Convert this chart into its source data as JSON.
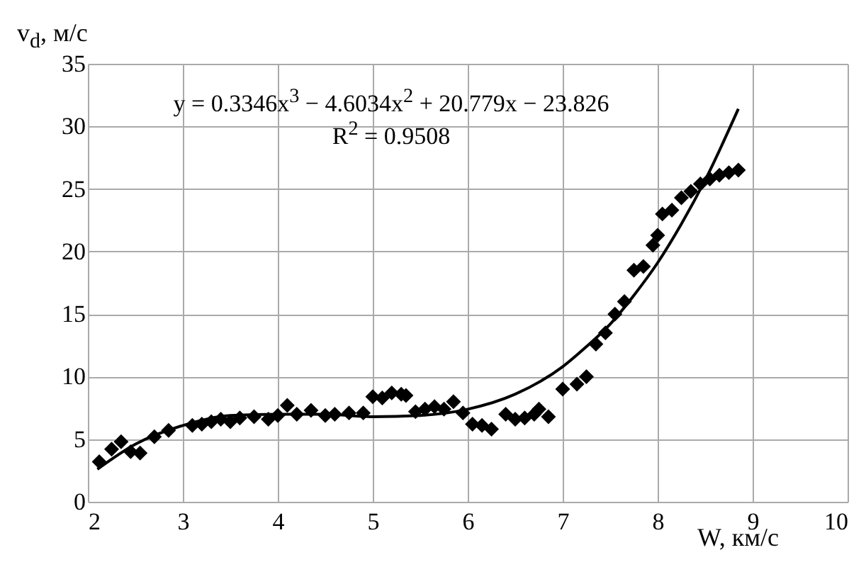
{
  "chart_data": {
    "type": "scatter",
    "xlabel": "W, км/с",
    "ylabel": "v$_{d}$, м/с",
    "annotations": [
      "y = 0.3346x$^{3}$ − 4.6034x$^{2}$ + 20.779x − 23.826",
      "R$^{2}$ = 0.9508"
    ],
    "xlim": [
      2,
      10
    ],
    "xticks": [
      2,
      3,
      4,
      5,
      6,
      7,
      8,
      9,
      10
    ],
    "ylim": [
      0,
      35
    ],
    "yticks": [
      0,
      5,
      10,
      15,
      20,
      25,
      30,
      35
    ],
    "grid": true,
    "marker": "diamond",
    "series": [
      {
        "type": "line",
        "marker": "none",
        "color": "#000000",
        "x": [
          2.1,
          2.5,
          3,
          3.5,
          4,
          4.5,
          5,
          5.5,
          6,
          6.5,
          7,
          7.25,
          7.5,
          7.75,
          8,
          8.25,
          8.5,
          8.85
        ],
        "values": [
          2.6,
          4.6,
          6.1,
          6.9,
          7.0,
          7.0,
          6.8,
          6.9,
          7.4,
          8.6,
          10.8,
          12.4,
          14.2,
          16.5,
          19.1,
          22.2,
          25.7,
          31.4
        ]
      },
      {
        "color": "#000000",
        "x": [
          2.12,
          2.25,
          2.35,
          2.45,
          2.55,
          2.7,
          2.85,
          3.1,
          3.2,
          3.3,
          3.4,
          3.5,
          3.6,
          3.75,
          3.9,
          4.0,
          4.1,
          4.2,
          4.35,
          4.5,
          4.6,
          4.75,
          4.9,
          5.0,
          5.1,
          5.2,
          5.3,
          5.35,
          5.45,
          5.55,
          5.65,
          5.75,
          5.85,
          5.95,
          6.05,
          6.15,
          6.25,
          6.4,
          6.5,
          6.6,
          6.7,
          6.75,
          6.85,
          7.0,
          7.15,
          7.25,
          7.35,
          7.45,
          7.55,
          7.65,
          7.75,
          7.85,
          7.95,
          8.0,
          8.05,
          8.15,
          8.25,
          8.35,
          8.45,
          8.55,
          8.65,
          8.75,
          8.85
        ],
        "values": [
          3.2,
          4.2,
          4.8,
          4.0,
          3.9,
          5.2,
          5.7,
          6.1,
          6.2,
          6.4,
          6.6,
          6.4,
          6.7,
          6.8,
          6.6,
          6.9,
          7.7,
          7.0,
          7.3,
          6.9,
          7.0,
          7.1,
          7.1,
          8.4,
          8.3,
          8.7,
          8.6,
          8.5,
          7.2,
          7.4,
          7.6,
          7.4,
          8.0,
          7.1,
          6.2,
          6.1,
          5.8,
          7.0,
          6.6,
          6.7,
          7.0,
          7.4,
          6.8,
          9.0,
          9.4,
          10.0,
          12.6,
          13.5,
          15.0,
          16.0,
          18.5,
          18.8,
          20.5,
          21.3,
          23.0,
          23.3,
          24.3,
          24.8,
          25.4,
          25.8,
          26.1,
          26.3,
          26.5
        ]
      }
    ]
  }
}
